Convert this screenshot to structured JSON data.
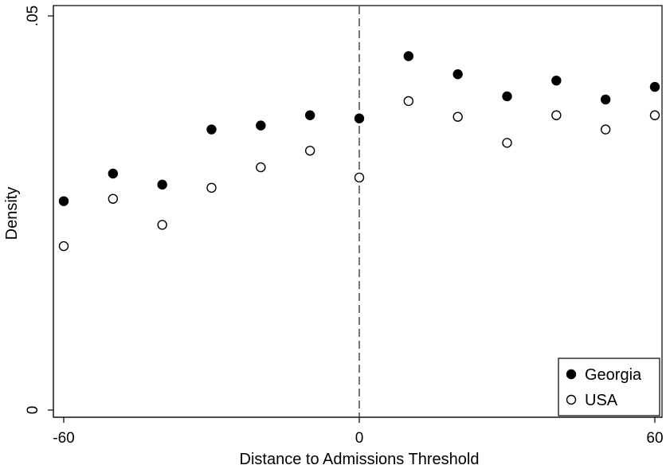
{
  "chart_data": {
    "type": "scatter",
    "title": "",
    "xlabel": "Distance to Admissions Threshold",
    "ylabel": "Density",
    "xlim": [
      -60,
      60
    ],
    "ylim": [
      0,
      0.05
    ],
    "x_ticks": [
      -60,
      0,
      60
    ],
    "x_tick_labels": [
      "-60",
      "0",
      "60"
    ],
    "y_ticks": [
      0,
      0.05
    ],
    "y_tick_labels": [
      "0",
      ".05"
    ],
    "grid": false,
    "reference_line": {
      "x": 0,
      "style": "dashed"
    },
    "legend_position": "bottom-right",
    "series": [
      {
        "name": "Georgia",
        "marker": "filled-circle",
        "color": "#000000",
        "x": [
          -60,
          -50,
          -40,
          -30,
          -20,
          -10,
          0,
          10,
          20,
          30,
          40,
          50,
          60
        ],
        "y": [
          0.0265,
          0.03,
          0.0286,
          0.0356,
          0.0361,
          0.0374,
          0.037,
          0.0449,
          0.0426,
          0.0398,
          0.0418,
          0.0394,
          0.041
        ]
      },
      {
        "name": "USA",
        "marker": "hollow-circle",
        "color": "#000000",
        "x": [
          -60,
          -50,
          -40,
          -30,
          -20,
          -10,
          0,
          10,
          20,
          30,
          40,
          50,
          60
        ],
        "y": [
          0.0208,
          0.0268,
          0.0235,
          0.0282,
          0.0308,
          0.0329,
          0.0295,
          0.0392,
          0.0372,
          0.0339,
          0.0374,
          0.0356,
          0.0374
        ]
      }
    ]
  }
}
